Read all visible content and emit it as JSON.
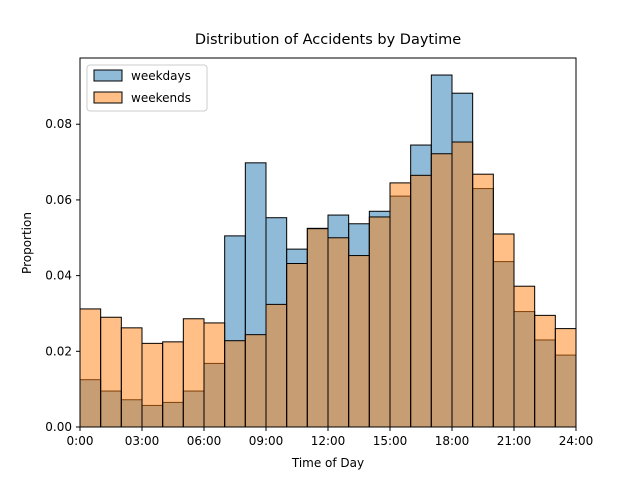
{
  "chart_data": {
    "type": "bar",
    "title": "Distribution of Accidents by Daytime",
    "xlabel": "Time of Day",
    "ylabel": "Proportion",
    "xlim": [
      0,
      24
    ],
    "ylim": [
      0,
      0.0975
    ],
    "x_ticks": [
      "0:00",
      "03:00",
      "06:00",
      "09:00",
      "12:00",
      "15:00",
      "18:00",
      "21:00",
      "24:00"
    ],
    "y_ticks": [
      "0.00",
      "0.02",
      "0.04",
      "0.06",
      "0.08"
    ],
    "grid": false,
    "legend_position": "top-left",
    "bin_edges": [
      0,
      1,
      2,
      3,
      4,
      5,
      6,
      7,
      8,
      9,
      10,
      11,
      12,
      13,
      14,
      15,
      16,
      17,
      18,
      19,
      20,
      21,
      22,
      23,
      24
    ],
    "series": [
      {
        "name": "weekdays",
        "color": "#1f77b4",
        "values": [
          0.0125,
          0.0095,
          0.0072,
          0.0057,
          0.0065,
          0.0095,
          0.0168,
          0.0505,
          0.0698,
          0.0553,
          0.047,
          0.0525,
          0.056,
          0.0537,
          0.057,
          0.061,
          0.0745,
          0.093,
          0.0882,
          0.063,
          0.0437,
          0.0305,
          0.023,
          0.019
        ]
      },
      {
        "name": "weekends",
        "color": "#ff7f0e",
        "values": [
          0.0312,
          0.029,
          0.0262,
          0.0221,
          0.0225,
          0.0286,
          0.0275,
          0.0228,
          0.0244,
          0.0324,
          0.0432,
          0.0524,
          0.05,
          0.0453,
          0.0555,
          0.0645,
          0.0665,
          0.0722,
          0.0753,
          0.0668,
          0.051,
          0.0372,
          0.0295,
          0.026
        ]
      }
    ]
  }
}
